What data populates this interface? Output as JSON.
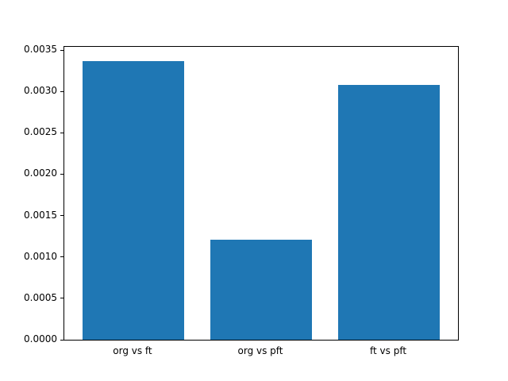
{
  "chart_data": {
    "type": "bar",
    "categories": [
      "org vs ft",
      "org vs pft",
      "ft vs pft"
    ],
    "values": [
      0.00337,
      0.00121,
      0.00308
    ],
    "title": "",
    "xlabel": "",
    "ylabel": "",
    "ylim": [
      0,
      0.003539
    ],
    "xlim": [
      -0.54,
      2.54
    ],
    "bar_width": 0.8,
    "yticks": [
      0.0,
      0.0005,
      0.001,
      0.0015,
      0.002,
      0.0025,
      0.003,
      0.0035
    ],
    "ytick_labels": [
      "0.0000",
      "0.0005",
      "0.0010",
      "0.0015",
      "0.0020",
      "0.0025",
      "0.0030",
      "0.0035"
    ],
    "bar_color": "#1f77b4",
    "background_color": "#ffffff",
    "grid": false,
    "legend": null
  }
}
